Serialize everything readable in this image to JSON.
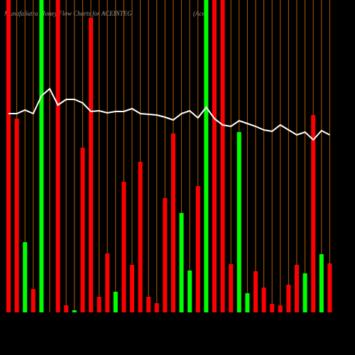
{
  "chart_data": {
    "type": "bar",
    "title": "MunafaSutra  Money Flow  Charts for ACEINTEG",
    "subtitle": "(Ace",
    "ylim": [
      0,
      440
    ],
    "values": [
      440,
      273,
      99,
      33,
      440,
      0,
      440,
      10,
      3,
      232,
      415,
      22,
      83,
      29,
      184,
      67,
      212,
      22,
      13,
      161,
      252,
      140,
      59,
      178,
      440,
      440,
      440,
      68,
      254,
      27,
      58,
      35,
      12,
      10,
      39,
      67,
      55,
      278,
      82,
      69
    ],
    "colors": [
      "#ff0000",
      "#ff0000",
      "#00ff00",
      "#ff0000",
      "#00ff00",
      "#ff0000",
      "#ff0000",
      "#ff0000",
      "#00ff00",
      "#ff0000",
      "#ff0000",
      "#ff0000",
      "#ff0000",
      "#00ff00",
      "#ff0000",
      "#ff0000",
      "#ff0000",
      "#ff0000",
      "#ff0000",
      "#ff0000",
      "#ff0000",
      "#00ff00",
      "#00ff00",
      "#ff0000",
      "#00ff00",
      "#ff0000",
      "#ff0000",
      "#ff0000",
      "#00ff00",
      "#00ff00",
      "#ff0000",
      "#ff0000",
      "#ff0000",
      "#ff0000",
      "#ff0000",
      "#ff0000",
      "#00ff00",
      "#ff0000",
      "#00ff00",
      "#ff0000"
    ],
    "line": {
      "color": "#ffffff",
      "values": [
        280,
        280,
        285,
        280,
        305,
        315,
        292,
        300,
        300,
        295,
        283,
        284,
        281,
        283,
        283,
        287,
        280,
        279,
        278,
        275,
        271,
        280,
        284,
        274,
        289,
        273,
        264,
        262,
        270,
        266,
        262,
        257,
        255,
        264,
        257,
        250,
        254,
        243,
        256,
        250
      ]
    },
    "gridline_color": "#b35c00"
  }
}
